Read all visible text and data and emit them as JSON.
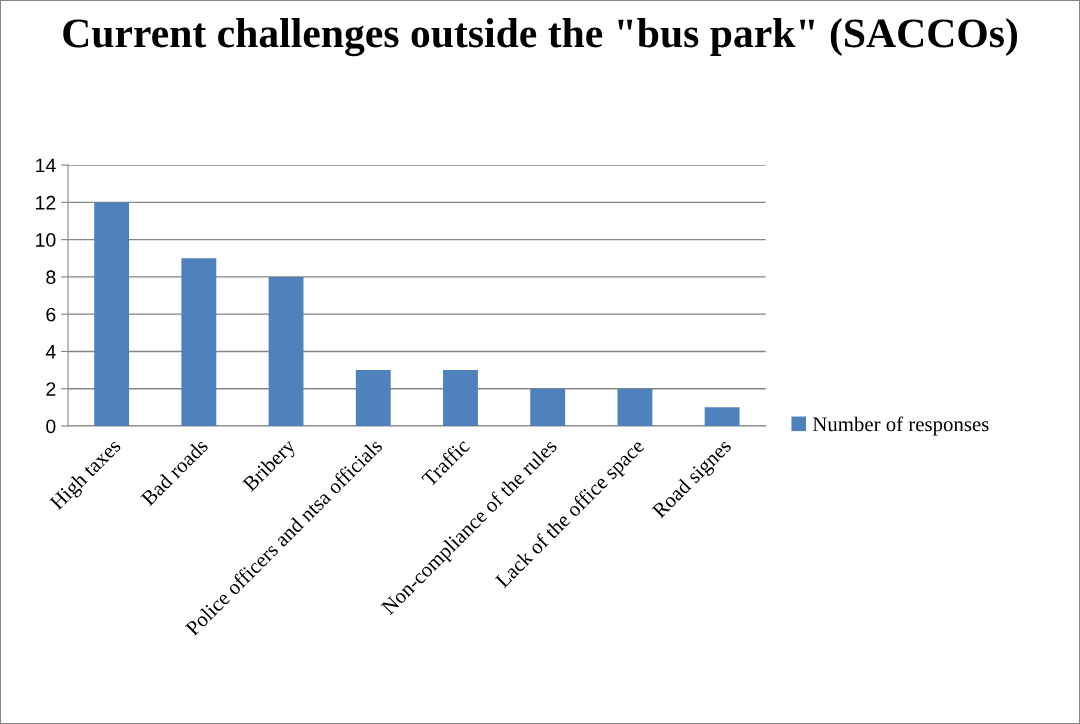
{
  "chart_data": {
    "type": "bar",
    "title": "Current challenges outside the \"bus park\" (SACCOs)",
    "categories": [
      "High taxes",
      "Bad roads",
      "Bribery",
      "Police officers and ntsa officials",
      "Traffic",
      "Non-compliance of the rules",
      "Lack of the office space",
      "Road signes"
    ],
    "series": [
      {
        "name": "Number of responses",
        "color": "#4f81bd",
        "values": [
          12,
          9,
          8,
          3,
          3,
          2,
          2,
          1
        ]
      }
    ],
    "ylim": [
      0,
      14
    ],
    "yticks": [
      0,
      2,
      4,
      6,
      8,
      10,
      12,
      14
    ],
    "grid": "y",
    "legend": "right"
  }
}
